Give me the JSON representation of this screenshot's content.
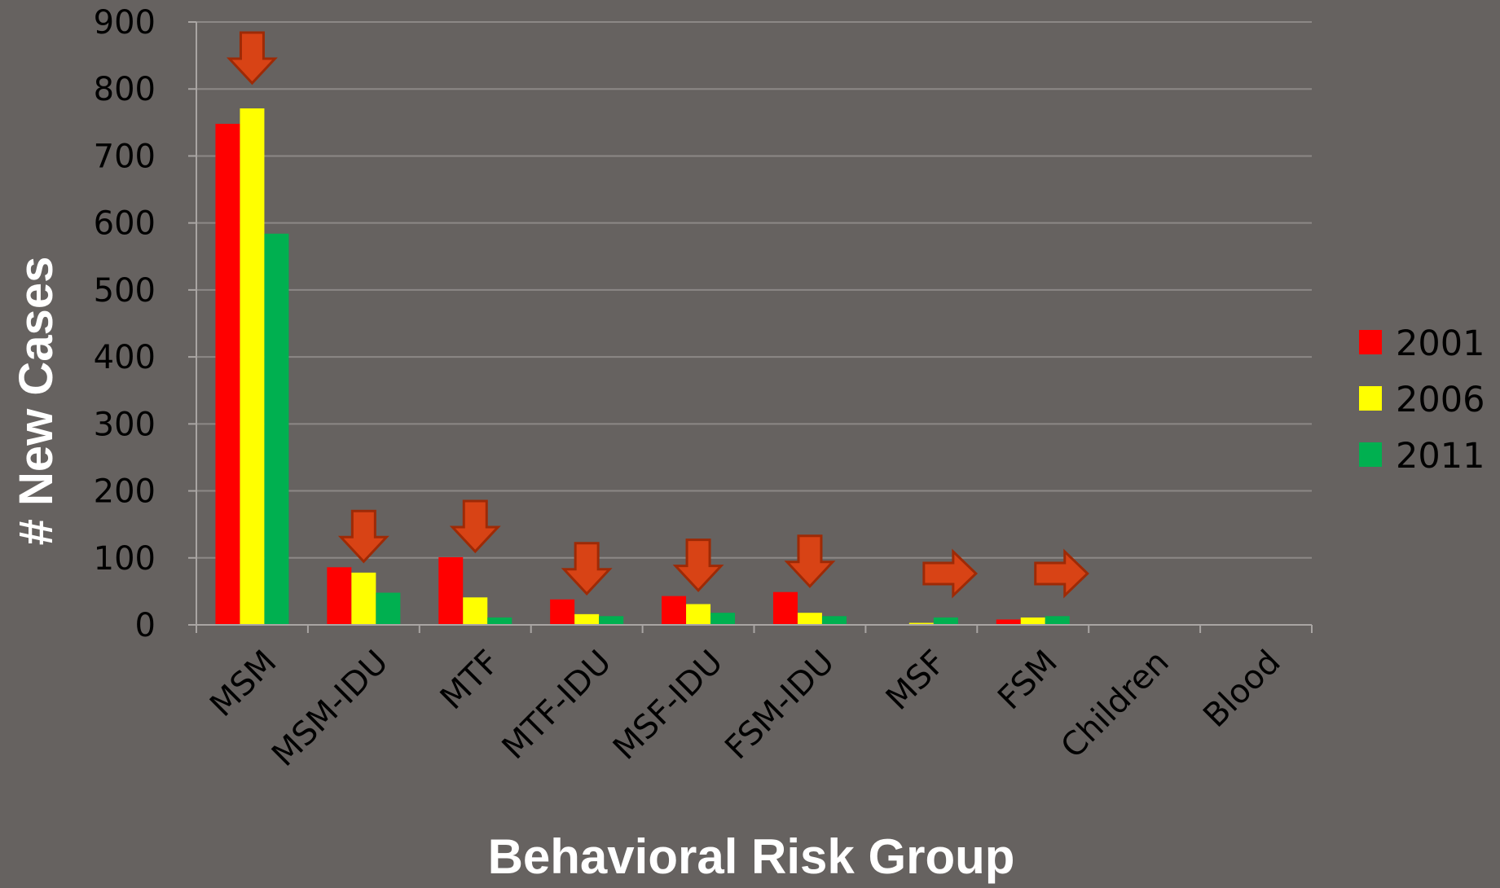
{
  "chart_data": {
    "type": "bar",
    "title": "",
    "xlabel": "Behavioral Risk Group",
    "ylabel": "# New Cases",
    "ylim": [
      0,
      900
    ],
    "yticks": [
      0,
      100,
      200,
      300,
      400,
      500,
      600,
      700,
      800,
      900
    ],
    "grid": true,
    "legend_position": "right",
    "categories": [
      "MSM",
      "MSM-IDU",
      "MTF",
      "MTF-IDU",
      "MSF-IDU",
      "FSM-IDU",
      "MSF",
      "FSM",
      "Children",
      "Blood"
    ],
    "series": [
      {
        "name": "2001",
        "color": "#ff0000",
        "values": [
          748,
          86,
          101,
          38,
          43,
          49,
          0,
          8,
          0,
          0
        ]
      },
      {
        "name": "2006",
        "color": "#ffff00",
        "values": [
          771,
          78,
          41,
          16,
          31,
          18,
          3,
          11,
          1,
          0
        ]
      },
      {
        "name": "2011",
        "color": "#00b050",
        "values": [
          584,
          48,
          11,
          13,
          18,
          13,
          11,
          13,
          0,
          0
        ]
      }
    ],
    "annotations": [
      {
        "category": "MSM",
        "icon": "arrow-down-icon"
      },
      {
        "category": "MSM-IDU",
        "icon": "arrow-down-icon"
      },
      {
        "category": "MTF",
        "icon": "arrow-down-icon"
      },
      {
        "category": "MTF-IDU",
        "icon": "arrow-down-icon"
      },
      {
        "category": "MSF-IDU",
        "icon": "arrow-down-icon"
      },
      {
        "category": "FSM-IDU",
        "icon": "arrow-down-icon"
      },
      {
        "category": "MSF",
        "icon": "arrow-right-icon"
      },
      {
        "category": "FSM",
        "icon": "arrow-right-icon"
      }
    ],
    "colors": {
      "background": "#666260",
      "gridline": "#8c8886",
      "axis": "#a9a5a3",
      "arrow_fill": "#d84315",
      "arrow_stroke": "#9e2a06"
    }
  }
}
